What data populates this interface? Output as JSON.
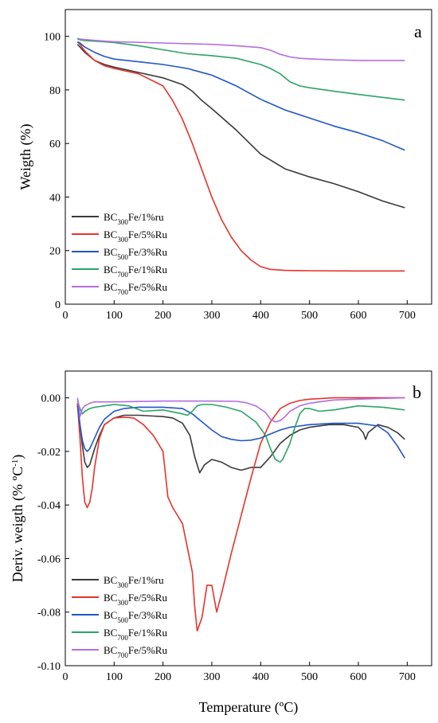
{
  "chart_data": [
    {
      "type": "line",
      "panel_label": "a",
      "xlabel": "",
      "ylabel": "Weigth (%)",
      "xlim": [
        0,
        750
      ],
      "ylim": [
        0,
        110
      ],
      "xticks": [
        0,
        100,
        200,
        300,
        400,
        500,
        600,
        700
      ],
      "yticks": [
        0,
        20,
        40,
        60,
        80,
        100
      ],
      "legend_position": "bottom-left",
      "series": [
        {
          "name": "BC300Fe/1%ru",
          "legend": {
            "base": "BC",
            "sub": "300",
            "rest": "Fe/1%ru"
          },
          "color": "#3a3a3a",
          "x": [
            25,
            30,
            40,
            60,
            80,
            100,
            150,
            200,
            240,
            260,
            280,
            300,
            350,
            400,
            450,
            500,
            550,
            600,
            650,
            695
          ],
          "y": [
            97,
            96,
            94,
            91,
            89.5,
            88.5,
            86.5,
            84.5,
            82,
            79.5,
            76,
            73,
            65,
            56,
            50.5,
            47.5,
            45,
            42,
            38.5,
            36
          ]
        },
        {
          "name": "BC300Fe/5%Ru",
          "legend": {
            "base": "BC",
            "sub": "300",
            "rest": "Fe/5%Ru"
          },
          "color": "#e8332a",
          "x": [
            25,
            30,
            40,
            60,
            80,
            100,
            150,
            200,
            220,
            240,
            260,
            280,
            300,
            320,
            340,
            360,
            380,
            400,
            420,
            450,
            500,
            600,
            695
          ],
          "y": [
            98,
            97,
            94.5,
            91,
            89,
            88,
            86,
            81.5,
            76,
            69,
            60,
            50,
            40,
            31.5,
            25,
            20,
            16.5,
            14,
            13,
            12.6,
            12.5,
            12.4,
            12.4
          ]
        },
        {
          "name": "BC500Fe/3%Ru",
          "legend": {
            "base": "BC",
            "sub": "500",
            "rest": "Fe/3%Ru"
          },
          "color": "#1f56c8",
          "x": [
            25,
            30,
            40,
            60,
            80,
            100,
            150,
            200,
            250,
            300,
            350,
            400,
            450,
            500,
            550,
            600,
            650,
            695
          ],
          "y": [
            98,
            97.5,
            96,
            94,
            92.5,
            91.5,
            90.5,
            89.5,
            88,
            85.5,
            81.5,
            76.5,
            72.5,
            69.5,
            66.5,
            64,
            61,
            57.5
          ]
        },
        {
          "name": "BC700Fe/1%Ru",
          "legend": {
            "base": "BC",
            "sub": "700",
            "rest": "Fe/1%Ru"
          },
          "color": "#2aa564",
          "x": [
            25,
            30,
            40,
            60,
            80,
            100,
            150,
            200,
            250,
            300,
            350,
            400,
            420,
            440,
            460,
            480,
            500,
            550,
            600,
            650,
            695
          ],
          "y": [
            99,
            98.7,
            98.4,
            98.2,
            98,
            97.7,
            96.5,
            95,
            93.5,
            92.8,
            91.8,
            89.5,
            88,
            86,
            83,
            81.5,
            80.8,
            79.5,
            78.3,
            77.2,
            76.2
          ]
        },
        {
          "name": "BC700Fe/5%Ru",
          "legend": {
            "base": "BC",
            "sub": "700",
            "rest": "Fe/5%Ru"
          },
          "color": "#b36ee0",
          "x": [
            25,
            30,
            40,
            60,
            100,
            200,
            300,
            350,
            400,
            420,
            440,
            460,
            480,
            500,
            550,
            600,
            650,
            695
          ],
          "y": [
            99.3,
            99,
            98.8,
            98.5,
            98,
            97.5,
            97,
            96.5,
            95.8,
            94.8,
            93.3,
            92.3,
            91.8,
            91.6,
            91.2,
            91,
            91,
            91
          ]
        }
      ]
    },
    {
      "type": "line",
      "panel_label": "b",
      "xlabel": "Temperature (ºC)",
      "ylabel": "Deriv. weigth (% ºC-1)",
      "ylabel_parts": {
        "main": "Deriv. weigth (% ºC",
        "sup": "-1",
        "end": ")"
      },
      "xlim": [
        0,
        750
      ],
      "ylim": [
        -0.1,
        0.01
      ],
      "xticks": [
        0,
        100,
        200,
        300,
        400,
        500,
        600,
        700
      ],
      "yticks": [
        0.0,
        -0.02,
        -0.04,
        -0.06,
        -0.08,
        -0.1
      ],
      "ytick_labels": [
        "0.00",
        "-0.02",
        "-0.04",
        "-0.06",
        "-0.08",
        "-0.10"
      ],
      "legend_position": "bottom-left",
      "series": [
        {
          "name": "BC300Fe/1%ru",
          "legend": {
            "base": "BC",
            "sub": "300",
            "rest": "Fe/1%ru"
          },
          "color": "#3a3a3a",
          "x": [
            25,
            30,
            35,
            40,
            45,
            50,
            60,
            70,
            80,
            100,
            120,
            150,
            180,
            200,
            220,
            240,
            255,
            265,
            275,
            285,
            300,
            320,
            340,
            360,
            380,
            400,
            420,
            440,
            460,
            480,
            500,
            540,
            570,
            600,
            610,
            615,
            620,
            640,
            660,
            680,
            695
          ],
          "y": [
            -0.002,
            -0.01,
            -0.018,
            -0.024,
            -0.026,
            -0.025,
            -0.019,
            -0.014,
            -0.01,
            -0.0075,
            -0.0065,
            -0.0065,
            -0.0068,
            -0.007,
            -0.0075,
            -0.0095,
            -0.014,
            -0.022,
            -0.028,
            -0.025,
            -0.023,
            -0.024,
            -0.026,
            -0.027,
            -0.026,
            -0.026,
            -0.022,
            -0.017,
            -0.014,
            -0.012,
            -0.011,
            -0.01,
            -0.01,
            -0.011,
            -0.013,
            -0.0155,
            -0.013,
            -0.01,
            -0.011,
            -0.013,
            -0.0155
          ]
        },
        {
          "name": "BC300Fe/5%Ru",
          "legend": {
            "base": "BC",
            "sub": "300",
            "rest": "Fe/5%Ru"
          },
          "color": "#e8332a",
          "x": [
            25,
            30,
            35,
            40,
            45,
            50,
            55,
            60,
            70,
            80,
            100,
            120,
            140,
            160,
            180,
            200,
            210,
            220,
            240,
            260,
            265,
            270,
            280,
            290,
            300,
            310,
            320,
            340,
            360,
            380,
            400,
            420,
            440,
            460,
            480,
            500,
            550,
            600,
            695
          ],
          "y": [
            -0.002,
            -0.015,
            -0.03,
            -0.039,
            -0.041,
            -0.039,
            -0.034,
            -0.026,
            -0.015,
            -0.01,
            -0.0075,
            -0.0072,
            -0.0075,
            -0.01,
            -0.014,
            -0.02,
            -0.037,
            -0.041,
            -0.047,
            -0.065,
            -0.078,
            -0.087,
            -0.082,
            -0.07,
            -0.07,
            -0.08,
            -0.073,
            -0.058,
            -0.044,
            -0.03,
            -0.017,
            -0.009,
            -0.004,
            -0.002,
            -0.001,
            -0.0005,
            0.0,
            0.0,
            0.0
          ]
        },
        {
          "name": "BC500Fe/3%Ru",
          "legend": {
            "base": "BC",
            "sub": "500",
            "rest": "Fe/3%Ru"
          },
          "color": "#1f56c8",
          "x": [
            25,
            30,
            35,
            40,
            45,
            50,
            60,
            70,
            80,
            100,
            120,
            150,
            200,
            240,
            260,
            280,
            300,
            320,
            340,
            360,
            380,
            400,
            420,
            440,
            460,
            480,
            500,
            550,
            600,
            640,
            660,
            680,
            695
          ],
          "y": [
            -0.003,
            -0.01,
            -0.016,
            -0.019,
            -0.02,
            -0.019,
            -0.015,
            -0.011,
            -0.008,
            -0.005,
            -0.004,
            -0.0035,
            -0.0035,
            -0.004,
            -0.006,
            -0.009,
            -0.012,
            -0.0145,
            -0.0155,
            -0.016,
            -0.0158,
            -0.015,
            -0.0135,
            -0.012,
            -0.011,
            -0.0105,
            -0.01,
            -0.0095,
            -0.0095,
            -0.0105,
            -0.013,
            -0.018,
            -0.0225
          ]
        },
        {
          "name": "BC700Fe/1%Ru",
          "legend": {
            "base": "BC",
            "sub": "700",
            "rest": "Fe/1%Ru"
          },
          "color": "#2aa564",
          "x": [
            25,
            30,
            35,
            40,
            50,
            60,
            80,
            100,
            130,
            160,
            200,
            240,
            250,
            260,
            270,
            280,
            300,
            330,
            360,
            390,
            410,
            420,
            430,
            440,
            445,
            450,
            460,
            470,
            480,
            490,
            500,
            520,
            550,
            600,
            650,
            695
          ],
          "y": [
            -0.001,
            -0.004,
            -0.006,
            -0.005,
            -0.004,
            -0.0035,
            -0.003,
            -0.0025,
            -0.003,
            -0.005,
            -0.0045,
            -0.006,
            -0.0065,
            -0.005,
            -0.003,
            -0.0025,
            -0.0025,
            -0.0035,
            -0.005,
            -0.009,
            -0.014,
            -0.019,
            -0.023,
            -0.024,
            -0.023,
            -0.021,
            -0.017,
            -0.011,
            -0.006,
            -0.004,
            -0.004,
            -0.005,
            -0.0045,
            -0.003,
            -0.0035,
            -0.0045
          ]
        },
        {
          "name": "BC700Fe/5%Ru",
          "legend": {
            "base": "BC",
            "sub": "700",
            "rest": "Fe/5%Ru"
          },
          "color": "#b36ee0",
          "x": [
            25,
            28,
            30,
            32,
            35,
            40,
            50,
            60,
            80,
            100,
            200,
            300,
            350,
            370,
            390,
            410,
            420,
            430,
            440,
            450,
            460,
            480,
            500,
            520,
            550,
            600,
            650,
            695
          ],
          "y": [
            0.0,
            -0.003,
            -0.007,
            -0.006,
            -0.004,
            -0.003,
            -0.002,
            -0.0015,
            -0.0015,
            -0.0015,
            -0.0012,
            -0.0012,
            -0.0013,
            -0.0018,
            -0.003,
            -0.0055,
            -0.008,
            -0.009,
            -0.0085,
            -0.007,
            -0.005,
            -0.003,
            -0.002,
            -0.0015,
            -0.0008,
            -0.0005,
            -0.0002,
            0.0
          ]
        }
      ]
    }
  ]
}
